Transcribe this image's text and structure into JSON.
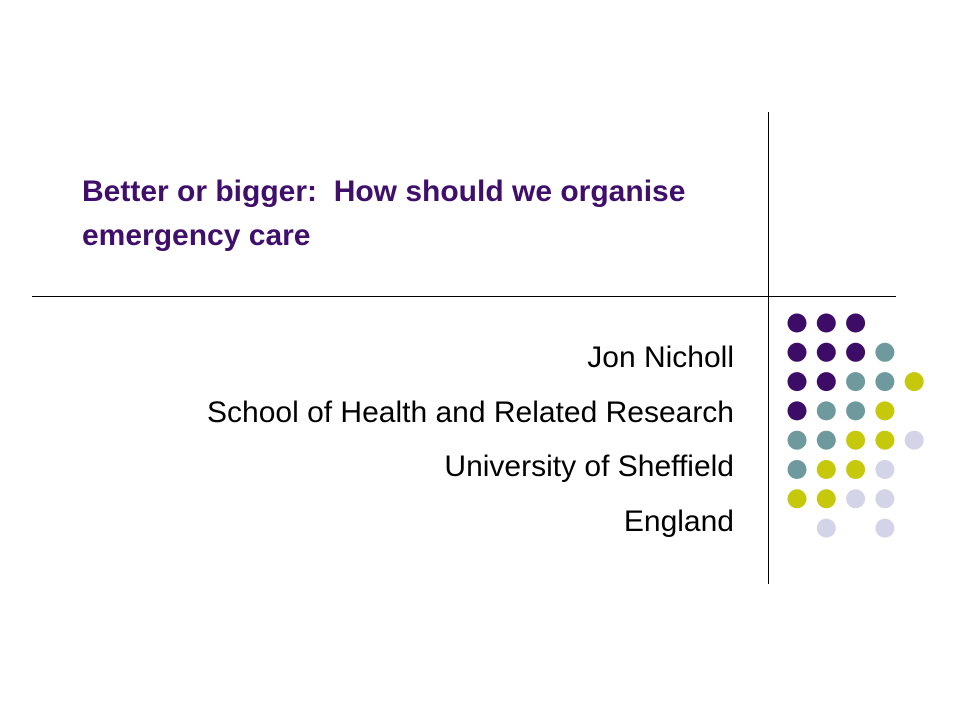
{
  "slide": {
    "title": "Better or bigger:  How should we organise emergency care",
    "subtitle_lines": [
      "Jon Nicholl",
      "School of Health and Related Research",
      "University of Sheffield",
      "England"
    ]
  },
  "decoration": {
    "name": "dot-grid",
    "colors": {
      "P": "#3c0c67",
      "T": "#6f9a9d",
      "Y": "#c6c90b",
      "L": "#d4d4e8"
    },
    "rows": [
      "PPP..",
      "PPPT.",
      "PPTTY",
      "PTTY.",
      "TTYYL",
      "TYYL.",
      "YYLL.",
      ".L.L."
    ]
  }
}
